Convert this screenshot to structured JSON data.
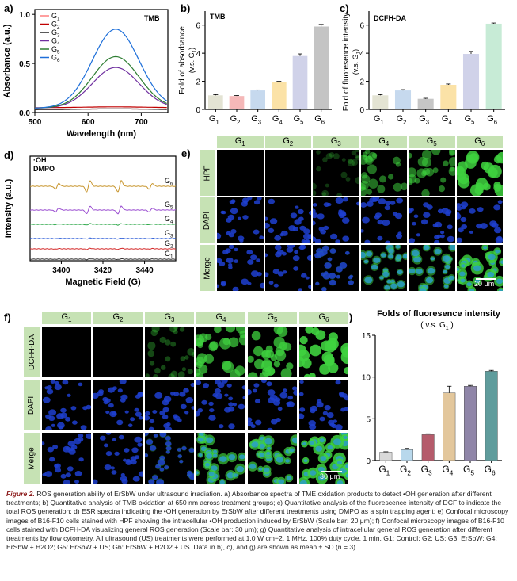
{
  "colors": {
    "G1": "#ff7f7f",
    "G2": "#c00000",
    "G3": "#222222",
    "G4": "#7030a0",
    "G5": "#2e7d32",
    "G6": "#1e6fd9",
    "hdr_green": "#c6e2b4"
  },
  "groups": [
    "G1",
    "G2",
    "G3",
    "G4",
    "G5",
    "G6"
  ],
  "panel_a": {
    "letter": "a)",
    "inlabel": "TMB",
    "xlabel": "Wavelength (nm)",
    "ylabel": "Absorbance (a.u.)",
    "xticks": [
      "500",
      "600",
      "700"
    ],
    "yticks": [
      "0.0",
      "0.5",
      "1.0"
    ],
    "legend": [
      {
        "g": "G",
        "s": "1",
        "color": "#ff7f7f"
      },
      {
        "g": "G",
        "s": "2",
        "color": "#c00000"
      },
      {
        "g": "G",
        "s": "3",
        "color": "#222222"
      },
      {
        "g": "G",
        "s": "4",
        "color": "#7030a0"
      },
      {
        "g": "G",
        "s": "5",
        "color": "#2e7d32"
      },
      {
        "g": "G",
        "s": "6",
        "color": "#1e6fd9"
      }
    ]
  },
  "panel_b": {
    "letter": "b)",
    "inlabel": "TMB",
    "ylabel": "Fold of absorbance",
    "ylabel_sub": "(v.s. G",
    "ylabel_sub2": "1",
    ")": ")",
    "yticks": [
      "0",
      "2",
      "4",
      "6"
    ]
  },
  "panel_c": {
    "letter": "c)",
    "inlabel": "DCFH-DA",
    "ylabel": "Fold of fluoresence intensity",
    "ylabel_sub": "(v.s. G",
    "ylabel_sub2": "1",
    "yticks": [
      "0",
      "2",
      "4",
      "6"
    ]
  },
  "panel_d": {
    "letter": "d)",
    "l1": "·OH",
    "l2": "DMPO",
    "xlabel": "Magnetic Field (G)",
    "ylabel": "Intensity (a.u.)",
    "xticks": [
      "3400",
      "3420",
      "3440"
    ],
    "traces": [
      {
        "g": "G",
        "s": "6",
        "color": "#c8962e"
      },
      {
        "g": "G",
        "s": "5",
        "color": "#9b4fd1"
      },
      {
        "g": "G",
        "s": "4",
        "color": "#2ea84a"
      },
      {
        "g": "G",
        "s": "3",
        "color": "#2a5bd7"
      },
      {
        "g": "G",
        "s": "2",
        "color": "#d42a2a"
      },
      {
        "g": "G",
        "s": "1",
        "color": "#333333"
      }
    ]
  },
  "panel_e": {
    "letter": "e)",
    "rows": [
      "HPF",
      "DAPI",
      "Merge"
    ],
    "scale": "20 μm"
  },
  "panel_f": {
    "letter": "f)",
    "rows": [
      "DCFH-DA",
      "DAPI",
      "Merge"
    ],
    "scale": "30 μm"
  },
  "panel_g": {
    "letter": "g)",
    "title": "Folds of fluoresence intensity",
    "subtitle": "( v.s. G",
    "subtitle_sub": "1",
    "yticks": [
      "0",
      "5",
      "10",
      "15"
    ]
  },
  "chart_data": [
    {
      "type": "line",
      "panel": "a",
      "title": "TMB",
      "xlabel": "Wavelength (nm)",
      "ylabel": "Absorbance (a.u.)",
      "xlim": [
        500,
        750
      ],
      "ylim": [
        0,
        1.05
      ],
      "series": [
        {
          "name": "G1",
          "peak_x": 650,
          "peak_y": 0.03
        },
        {
          "name": "G2",
          "peak_x": 650,
          "peak_y": 0.05
        },
        {
          "name": "G3",
          "peak_x": 650,
          "peak_y": 0.03
        },
        {
          "name": "G4",
          "peak_x": 652,
          "peak_y": 0.46
        },
        {
          "name": "G5",
          "peak_x": 652,
          "peak_y": 0.57
        },
        {
          "name": "G6",
          "peak_x": 652,
          "peak_y": 0.85
        }
      ]
    },
    {
      "type": "bar",
      "panel": "b",
      "title": "TMB",
      "ylabel": "Fold of absorbance (v.s. G1)",
      "ylim": [
        0,
        7
      ],
      "categories": [
        "G1",
        "G2",
        "G3",
        "G4",
        "G5",
        "G6"
      ],
      "values": [
        1.0,
        0.95,
        1.35,
        1.95,
        3.8,
        5.9
      ],
      "errors": [
        0.05,
        0.04,
        0.04,
        0.05,
        0.15,
        0.15
      ],
      "colors": [
        "#e3e3d3",
        "#f5b8b8",
        "#c6d9ee",
        "#fbe2a7",
        "#d0d2e9",
        "#c4c4c4"
      ]
    },
    {
      "type": "bar",
      "panel": "c",
      "title": "DCFH-DA",
      "ylabel": "Fold of fluoresence intensity (v.s. G1)",
      "ylim": [
        0,
        7
      ],
      "categories": [
        "G1",
        "G2",
        "G3",
        "G4",
        "G5",
        "G6"
      ],
      "values": [
        1.0,
        1.35,
        0.75,
        1.75,
        3.95,
        6.1
      ],
      "errors": [
        0.05,
        0.06,
        0.04,
        0.06,
        0.18,
        0.05
      ],
      "colors": [
        "#e3e3d3",
        "#c6d9ee",
        "#c6c6c6",
        "#fbe2a7",
        "#d0d2e9",
        "#c7ebd6"
      ]
    },
    {
      "type": "bar",
      "panel": "g",
      "title": "Folds of fluoresence intensity (v.s. G1)",
      "ylim": [
        0,
        15
      ],
      "categories": [
        "G1",
        "G2",
        "G3",
        "G4",
        "G5",
        "G6"
      ],
      "values": [
        1.0,
        1.3,
        3.1,
        8.1,
        8.9,
        10.7
      ],
      "errors": [
        0.05,
        0.15,
        0.1,
        0.8,
        0.1,
        0.1
      ],
      "colors": [
        "#d9d9d9",
        "#b8d8ec",
        "#b55b6b",
        "#e3c79c",
        "#8f85a8",
        "#5f9c9c"
      ]
    }
  ],
  "caption": {
    "fig": "Figure 2.",
    "text": "ROS generation ability of ErSbW under ultrasound irradiation. a) Absorbance spectra of TME oxidation products to detect •OH generation after different treatments; b) Quantitative analysis of TMB oxidation at 650 nm across treatment groups; c) Quantitative analysis of the fluorescence intensity of DCF to indicate the total ROS generation; d) ESR spectra indicating the •OH generation by ErSbW after different treatments using DMPO as a spin trapping agent; e) Confocal microscopy images of B16-F10 cells stained with HPF showing the intracellular •OH production induced by ErSbW (Scale bar: 20 μm); f) Confocal microscopy images of B16-F10 cells stained with DCFH-DA visualizing general ROS generation (Scale bar: 30 μm); g) Quantitative analysis of intracellular general ROS generation after different treatments by flow cytometry. All ultrasound (US) treatments were performed at 1.0 W cm−2, 1 MHz, 100% duty cycle, 1 min. G1: Control; G2: US; G3: ErSbW; G4: ErSbW + H2O2; G5: ErSbW + US; G6: ErSbW + H2O2 + US. Data in b), c), and g) are shown as mean ± SD (n = 3)."
  }
}
